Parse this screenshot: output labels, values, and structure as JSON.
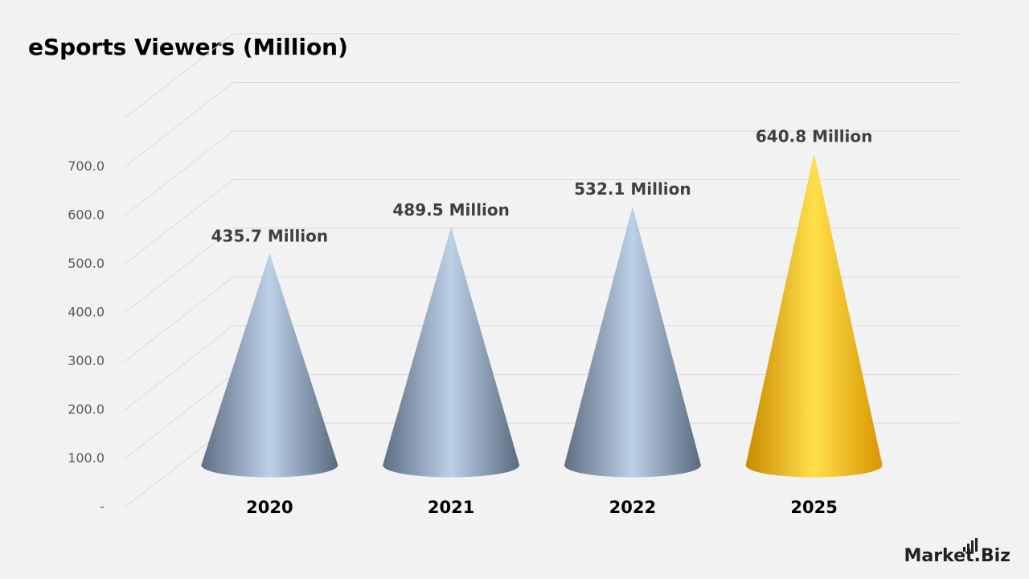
{
  "chart_data": {
    "type": "cone",
    "title": "eSports Viewers (Million)",
    "categories": [
      "2020",
      "2021",
      "2022",
      "2025"
    ],
    "values": [
      435.7,
      489.5,
      532.1,
      640.8
    ],
    "value_labels": [
      "435.7 Million",
      "489.5  Million",
      "532.1 Million",
      "640.8 Million"
    ],
    "colors": [
      "#8496b0",
      "#8496b0",
      "#8496b0",
      "#ffc000"
    ],
    "ylim": [
      0,
      800
    ],
    "yticks": [
      {
        "value": 0,
        "label": "-"
      },
      {
        "value": 100,
        "label": "100.0"
      },
      {
        "value": 200,
        "label": "200.0"
      },
      {
        "value": 300,
        "label": "300.0"
      },
      {
        "value": 400,
        "label": "400.0"
      },
      {
        "value": 500,
        "label": "500.0"
      },
      {
        "value": 600,
        "label": "600.0"
      },
      {
        "value": 700,
        "label": "700.0"
      }
    ],
    "grid": true,
    "watermark": "Market.Biz"
  }
}
